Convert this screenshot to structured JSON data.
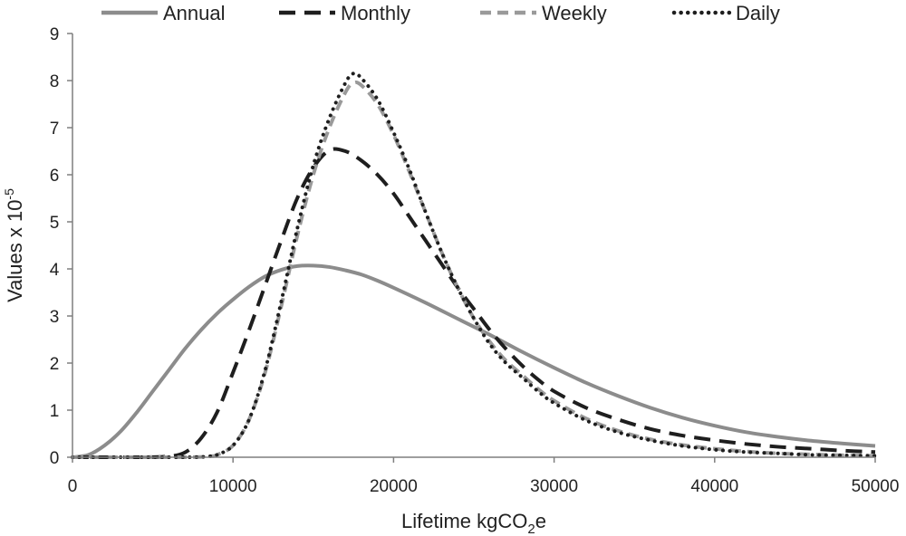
{
  "chart_data": {
    "type": "line",
    "xlabel": "Lifetime kgCO",
    "xlabel_sub": "2",
    "xlabel_suffix": "e",
    "ylabel": "Values x 10",
    "ylabel_sup": "-5",
    "xlim": [
      0,
      50000
    ],
    "ylim": [
      0,
      9
    ],
    "x_ticks": [
      0,
      10000,
      20000,
      30000,
      40000,
      50000
    ],
    "y_ticks": [
      0,
      1,
      2,
      3,
      4,
      5,
      6,
      7,
      8,
      9
    ],
    "grid": false,
    "legend_position": "top",
    "series": [
      {
        "name": "Annual",
        "color": "#8c8c8c",
        "dash": "solid",
        "points": [
          [
            0,
            0
          ],
          [
            1000,
            0.05
          ],
          [
            2000,
            0.25
          ],
          [
            3000,
            0.55
          ],
          [
            4000,
            0.95
          ],
          [
            5000,
            1.4
          ],
          [
            6000,
            1.85
          ],
          [
            7000,
            2.3
          ],
          [
            8000,
            2.7
          ],
          [
            9000,
            3.05
          ],
          [
            10000,
            3.35
          ],
          [
            11000,
            3.62
          ],
          [
            12000,
            3.84
          ],
          [
            13000,
            3.98
          ],
          [
            14000,
            4.06
          ],
          [
            15000,
            4.07
          ],
          [
            16000,
            4.04
          ],
          [
            17000,
            3.97
          ],
          [
            18000,
            3.88
          ],
          [
            19000,
            3.75
          ],
          [
            20000,
            3.6
          ],
          [
            22000,
            3.28
          ],
          [
            24000,
            2.94
          ],
          [
            26000,
            2.6
          ],
          [
            28000,
            2.24
          ],
          [
            30000,
            1.9
          ],
          [
            32000,
            1.58
          ],
          [
            34000,
            1.3
          ],
          [
            36000,
            1.05
          ],
          [
            38000,
            0.84
          ],
          [
            40000,
            0.67
          ],
          [
            42000,
            0.53
          ],
          [
            44000,
            0.43
          ],
          [
            46000,
            0.35
          ],
          [
            48000,
            0.29
          ],
          [
            50000,
            0.24
          ]
        ]
      },
      {
        "name": "Monthly",
        "color": "#1e1e1e",
        "dash": "long-dash",
        "points": [
          [
            0,
            0
          ],
          [
            4000,
            0
          ],
          [
            6000,
            0.02
          ],
          [
            7000,
            0.1
          ],
          [
            8000,
            0.4
          ],
          [
            9000,
            0.95
          ],
          [
            10000,
            1.8
          ],
          [
            11000,
            2.7
          ],
          [
            12000,
            3.65
          ],
          [
            13000,
            4.6
          ],
          [
            14000,
            5.5
          ],
          [
            15000,
            6.15
          ],
          [
            16000,
            6.52
          ],
          [
            17000,
            6.5
          ],
          [
            18000,
            6.3
          ],
          [
            19000,
            6.0
          ],
          [
            20000,
            5.6
          ],
          [
            21000,
            5.1
          ],
          [
            22000,
            4.6
          ],
          [
            23000,
            4.1
          ],
          [
            24000,
            3.6
          ],
          [
            25000,
            3.15
          ],
          [
            26000,
            2.7
          ],
          [
            27000,
            2.3
          ],
          [
            28000,
            1.95
          ],
          [
            29000,
            1.65
          ],
          [
            30000,
            1.4
          ],
          [
            32000,
            1.05
          ],
          [
            34000,
            0.8
          ],
          [
            36000,
            0.6
          ],
          [
            38000,
            0.46
          ],
          [
            40000,
            0.36
          ],
          [
            42000,
            0.28
          ],
          [
            44000,
            0.22
          ],
          [
            46000,
            0.18
          ],
          [
            48000,
            0.14
          ],
          [
            50000,
            0.11
          ]
        ]
      },
      {
        "name": "Weekly",
        "color": "#9a9a9a",
        "dash": "dash",
        "points": [
          [
            0,
            0
          ],
          [
            7000,
            0
          ],
          [
            8500,
            0.02
          ],
          [
            9000,
            0.05
          ],
          [
            10000,
            0.25
          ],
          [
            11000,
            0.8
          ],
          [
            12000,
            1.8
          ],
          [
            13000,
            3.2
          ],
          [
            14000,
            4.7
          ],
          [
            15000,
            6.0
          ],
          [
            16000,
            7.0
          ],
          [
            17000,
            7.75
          ],
          [
            17500,
            7.95
          ],
          [
            18000,
            7.9
          ],
          [
            19000,
            7.5
          ],
          [
            20000,
            6.85
          ],
          [
            21000,
            6.05
          ],
          [
            22000,
            5.2
          ],
          [
            23000,
            4.35
          ],
          [
            24000,
            3.6
          ],
          [
            25000,
            2.95
          ],
          [
            26000,
            2.45
          ],
          [
            27000,
            2.05
          ],
          [
            28000,
            1.75
          ],
          [
            29000,
            1.45
          ],
          [
            30000,
            1.2
          ],
          [
            32000,
            0.82
          ],
          [
            34000,
            0.56
          ],
          [
            36000,
            0.38
          ],
          [
            38000,
            0.26
          ],
          [
            40000,
            0.18
          ],
          [
            42000,
            0.12
          ],
          [
            44000,
            0.08
          ],
          [
            46000,
            0.06
          ],
          [
            48000,
            0.04
          ],
          [
            50000,
            0.03
          ]
        ]
      },
      {
        "name": "Daily",
        "color": "#1e1e1e",
        "dash": "dotted",
        "points": [
          [
            0,
            0
          ],
          [
            7000,
            0
          ],
          [
            8500,
            0.02
          ],
          [
            9000,
            0.05
          ],
          [
            10000,
            0.25
          ],
          [
            11000,
            0.8
          ],
          [
            12000,
            1.85
          ],
          [
            13000,
            3.3
          ],
          [
            14000,
            4.85
          ],
          [
            15000,
            6.2
          ],
          [
            16000,
            7.2
          ],
          [
            17000,
            7.95
          ],
          [
            17500,
            8.15
          ],
          [
            18000,
            8.05
          ],
          [
            19000,
            7.6
          ],
          [
            20000,
            6.9
          ],
          [
            21000,
            6.1
          ],
          [
            22000,
            5.2
          ],
          [
            23000,
            4.35
          ],
          [
            24000,
            3.6
          ],
          [
            25000,
            2.95
          ],
          [
            26000,
            2.4
          ],
          [
            27000,
            2.0
          ],
          [
            28000,
            1.7
          ],
          [
            29000,
            1.4
          ],
          [
            30000,
            1.15
          ],
          [
            32000,
            0.78
          ],
          [
            34000,
            0.53
          ],
          [
            36000,
            0.36
          ],
          [
            38000,
            0.24
          ],
          [
            40000,
            0.16
          ],
          [
            42000,
            0.11
          ],
          [
            44000,
            0.08
          ],
          [
            46000,
            0.05
          ],
          [
            48000,
            0.04
          ],
          [
            50000,
            0.03
          ]
        ]
      }
    ]
  }
}
